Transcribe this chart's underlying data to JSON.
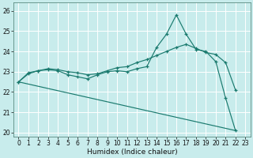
{
  "xlabel": "Humidex (Indice chaleur)",
  "bg_color": "#c8ecec",
  "grid_color": "#ffffff",
  "line_color": "#1a7a6e",
  "xlim": [
    -0.5,
    23.5
  ],
  "ylim": [
    19.8,
    26.4
  ],
  "yticks": [
    20,
    21,
    22,
    23,
    24,
    25,
    26
  ],
  "xticks": [
    0,
    1,
    2,
    3,
    4,
    5,
    6,
    7,
    8,
    9,
    10,
    11,
    12,
    13,
    14,
    15,
    16,
    17,
    18,
    19,
    20,
    21,
    22,
    23
  ],
  "series1_x": [
    0,
    1,
    2,
    3,
    4,
    5,
    6,
    7,
    8,
    9,
    10,
    11,
    12,
    13,
    14,
    15,
    16,
    17,
    18,
    19,
    20,
    21,
    22
  ],
  "series1_y": [
    22.5,
    22.9,
    23.05,
    23.1,
    23.05,
    22.85,
    22.75,
    22.65,
    22.85,
    23.0,
    23.05,
    23.0,
    23.15,
    23.25,
    24.2,
    24.85,
    25.8,
    24.85,
    24.1,
    24.0,
    23.5,
    21.7,
    20.1
  ],
  "series2_x": [
    0,
    1,
    2,
    3,
    4,
    5,
    6,
    7,
    8,
    9,
    10,
    11,
    12,
    13,
    14,
    15,
    16,
    17,
    18,
    19,
    20,
    21,
    22
  ],
  "series2_y": [
    22.5,
    22.95,
    23.05,
    23.15,
    23.1,
    23.0,
    22.95,
    22.85,
    22.9,
    23.05,
    23.2,
    23.25,
    23.45,
    23.6,
    23.8,
    24.0,
    24.2,
    24.35,
    24.15,
    23.95,
    23.85,
    23.45,
    22.1
  ],
  "series3_x": [
    0,
    22
  ],
  "series3_y": [
    22.5,
    20.1
  ]
}
